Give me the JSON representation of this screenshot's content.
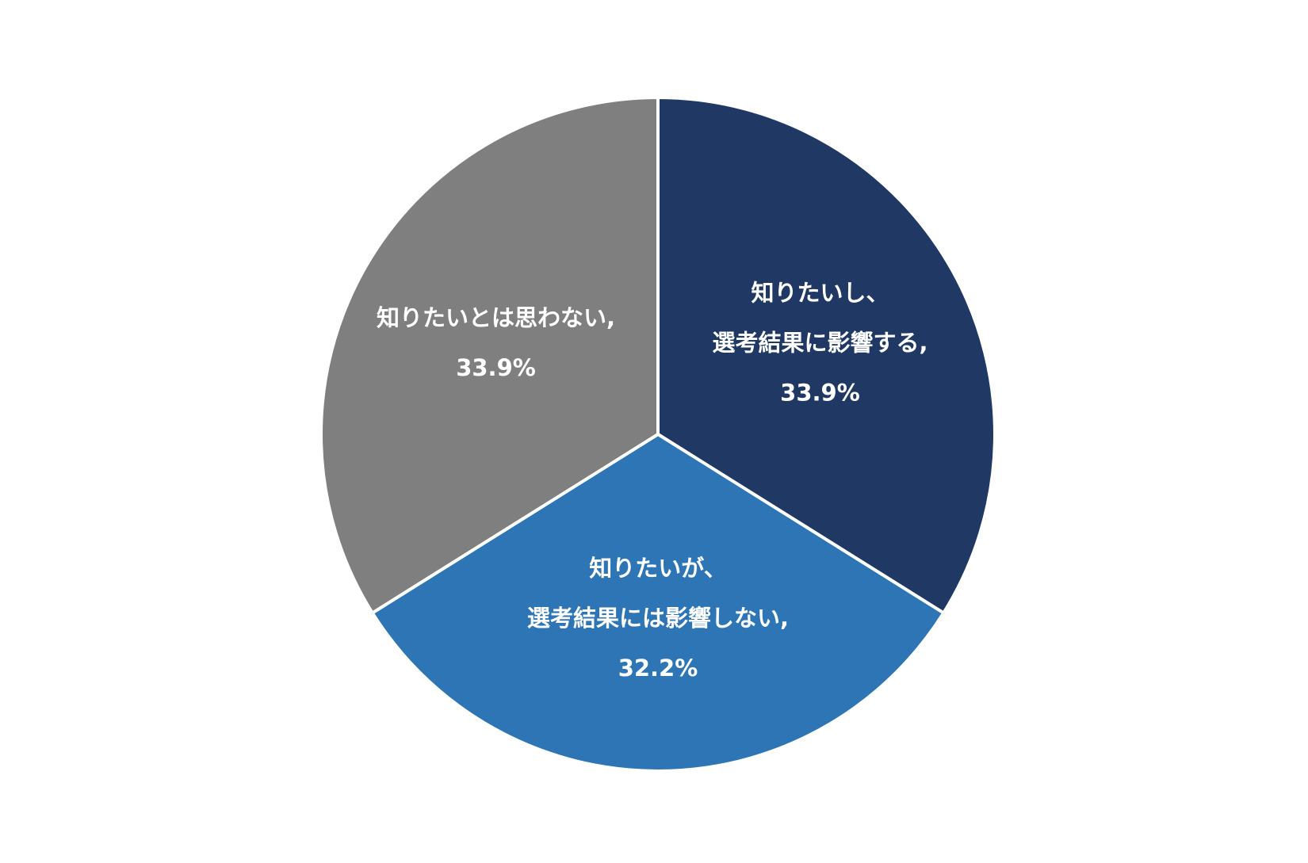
{
  "chart_data": {
    "type": "pie",
    "categories": [
      [
        "知りたいし、",
        "選考結果に影響する,"
      ],
      [
        "知りたいが、",
        "選考結果には影響しない,"
      ],
      [
        "知りたいとは思わない,"
      ]
    ],
    "values": [
      33.9,
      32.2,
      33.9
    ],
    "value_labels": [
      "33.9%",
      "32.2%",
      "33.9%"
    ],
    "colors": [
      "#203864",
      "#2e75b6",
      "#7f7f7f"
    ]
  }
}
